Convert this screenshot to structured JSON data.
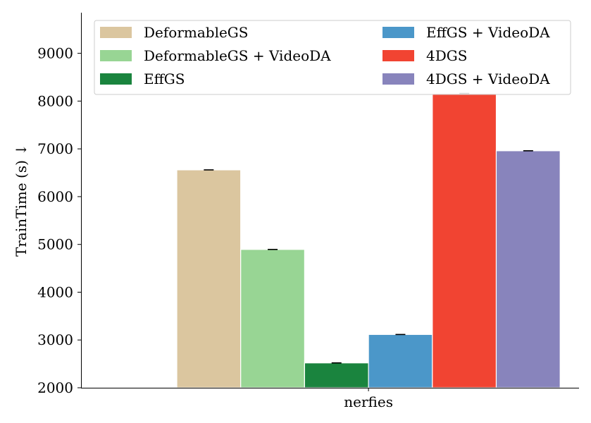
{
  "chart_data": {
    "type": "bar",
    "categories": [
      "nerfies"
    ],
    "series": [
      {
        "name": "DeformableGS",
        "values": [
          6560
        ],
        "color": "#dbc69f"
      },
      {
        "name": "DeformableGS + VideoDA",
        "values": [
          4895
        ],
        "color": "#98d594"
      },
      {
        "name": "EffGS",
        "values": [
          2520
        ],
        "color": "#1a843e"
      },
      {
        "name": "EffGS + VideoDA",
        "values": [
          3115
        ],
        "color": "#4b97c9"
      },
      {
        "name": "4DGS",
        "values": [
          8160
        ],
        "color": "#f14432"
      },
      {
        "name": "4DGS + VideoDA",
        "values": [
          6960
        ],
        "color": "#8884bc"
      }
    ],
    "ylabel": "TrainTime (s) ↓",
    "xlabel": "",
    "ylim": [
      2000,
      9850
    ],
    "yticks": [
      2000,
      3000,
      4000,
      5000,
      6000,
      7000,
      8000,
      9000
    ],
    "grid": false,
    "error_bars": true,
    "legend": {
      "position": "top",
      "columns": 2
    }
  }
}
